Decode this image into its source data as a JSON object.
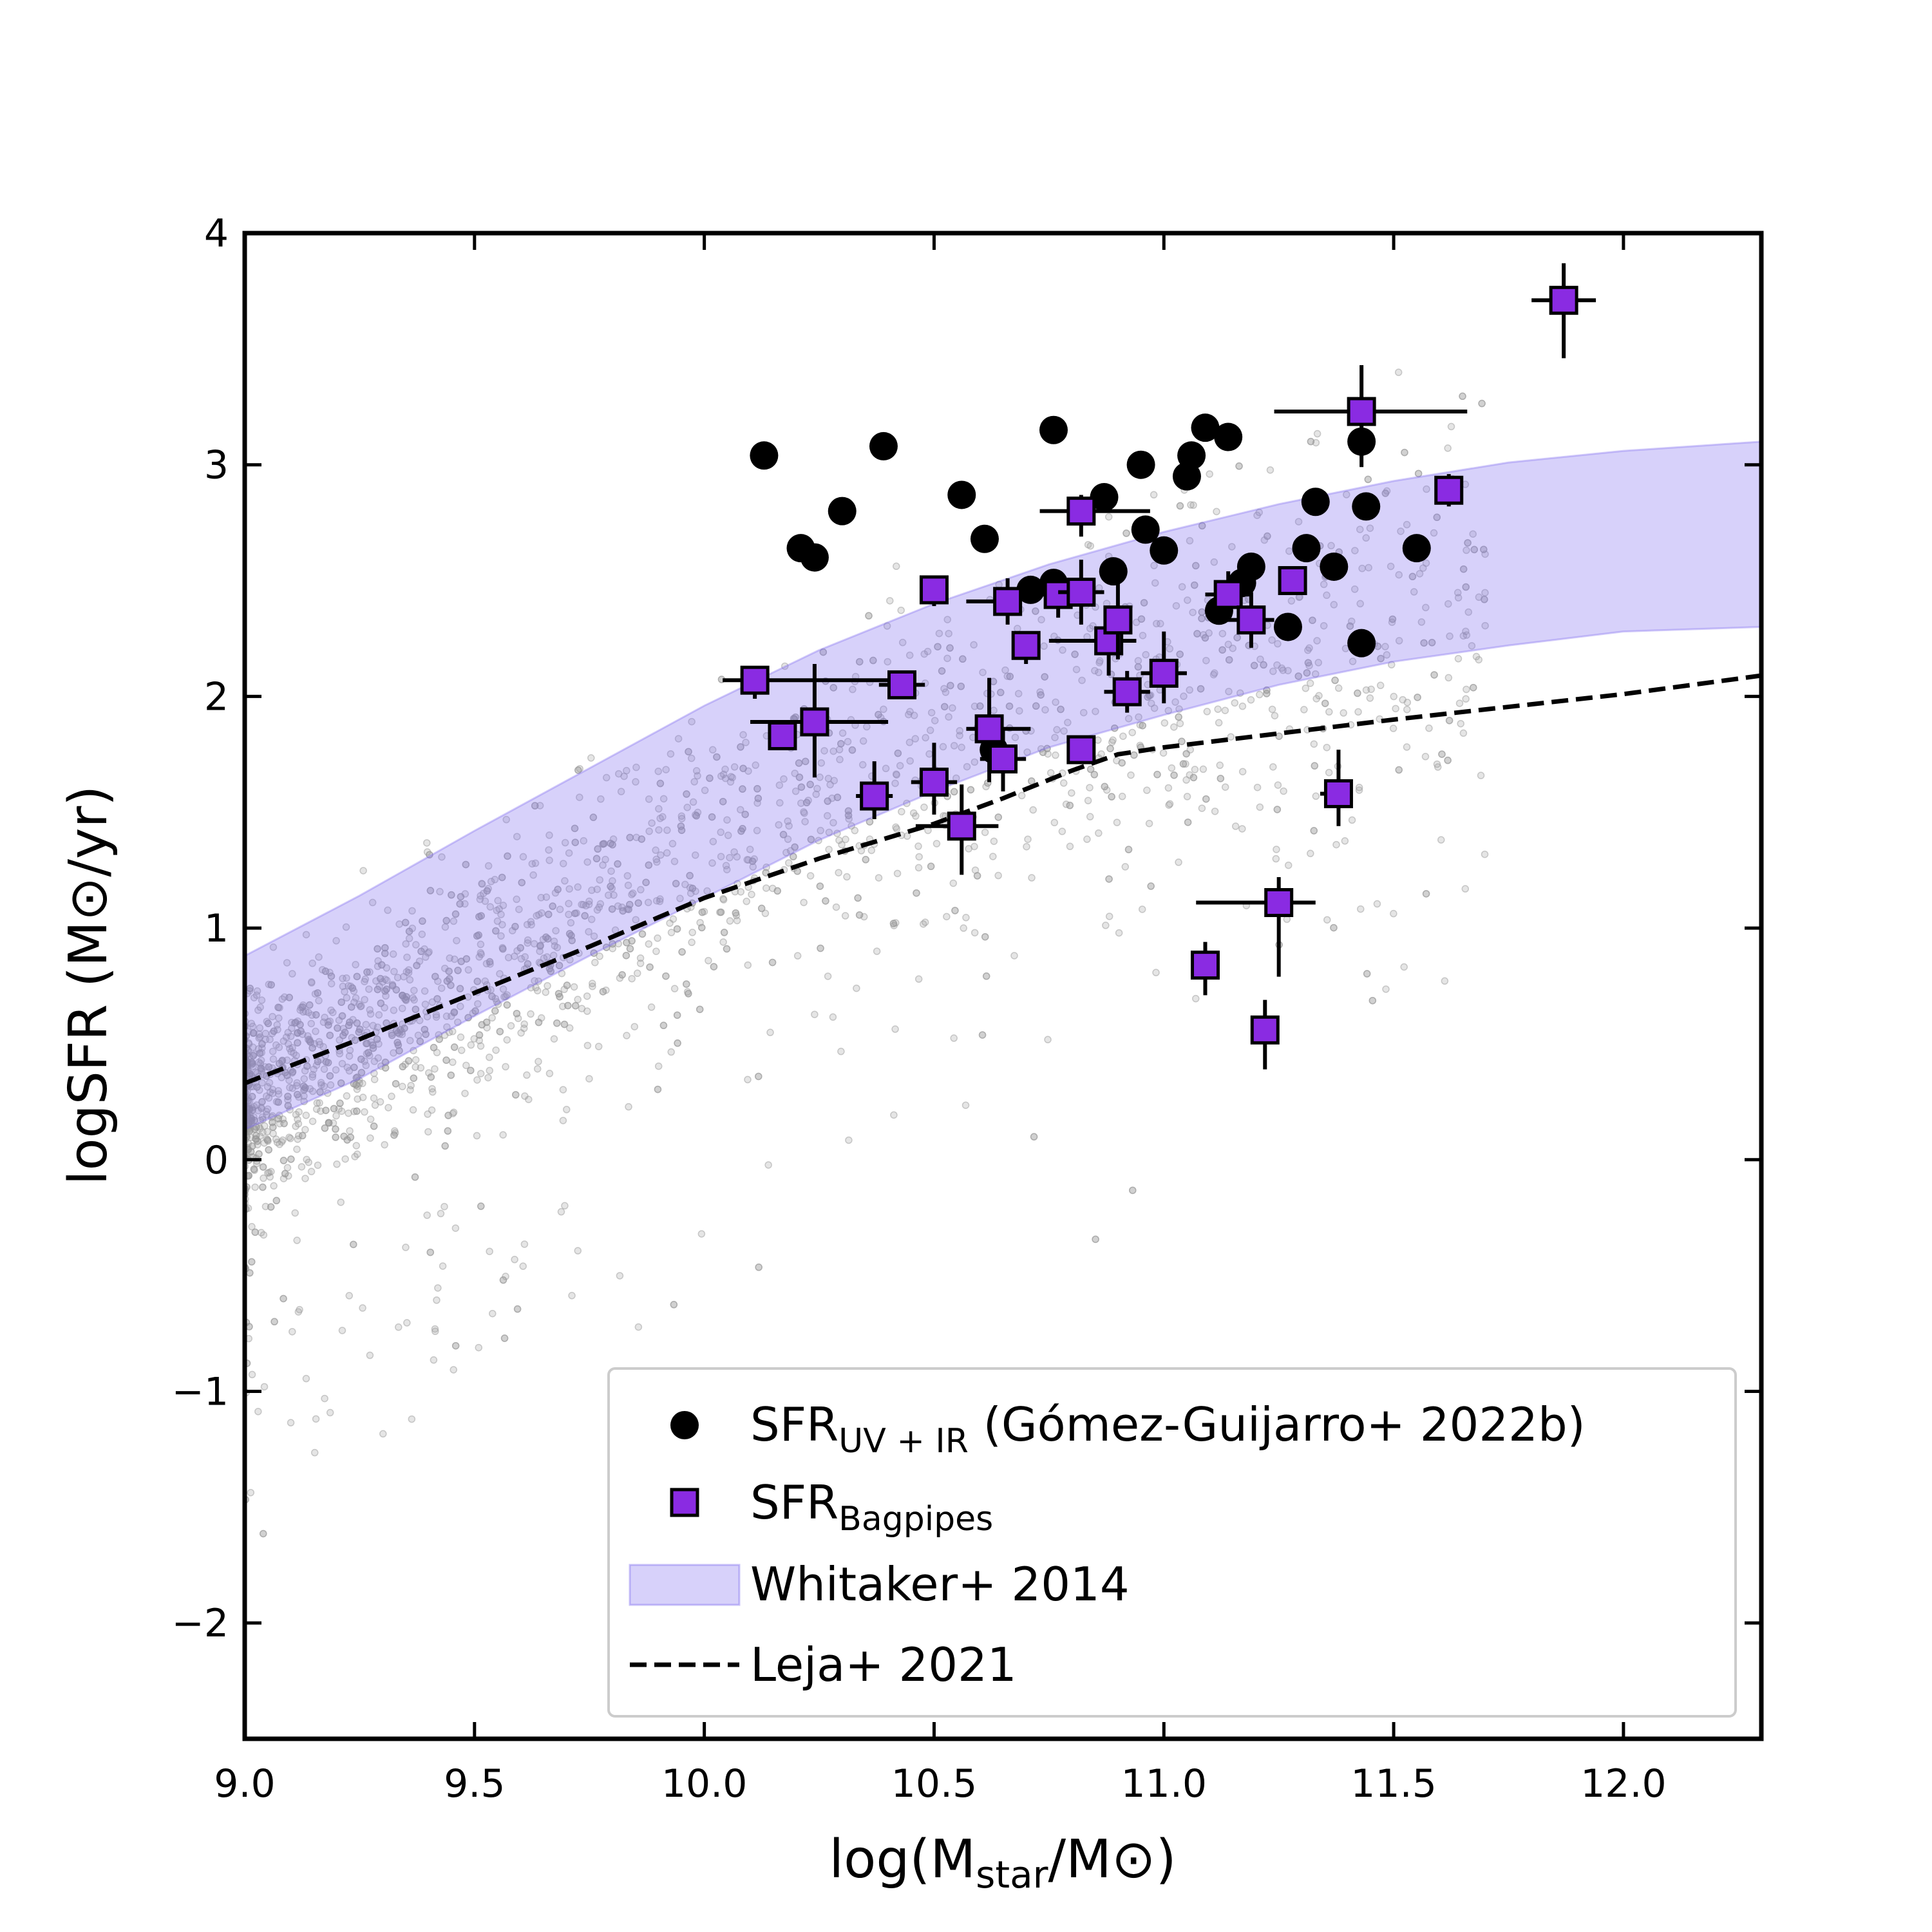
{
  "chart_data": {
    "type": "scatter",
    "title": "",
    "xlabel": {
      "main": "log(M",
      "sub": "star",
      "rest": "/M",
      "symbol": "⊙",
      "close": ")"
    },
    "ylabel": {
      "main": "logSFR (M",
      "symbol": "⊙",
      "rest": "/yr)"
    },
    "xlim": [
      9.0,
      12.3
    ],
    "ylim": [
      -2.5,
      4.0
    ],
    "xticks": [
      9.0,
      9.5,
      10.0,
      10.5,
      11.0,
      11.5,
      12.0
    ],
    "xtick_labels": [
      "9.0",
      "9.5",
      "10.0",
      "10.5",
      "11.0",
      "11.5",
      "12.0"
    ],
    "yticks": [
      -2,
      -1,
      0,
      1,
      2,
      3,
      4
    ],
    "ytick_labels": [
      "−2",
      "−1",
      "0",
      "1",
      "2",
      "3",
      "4"
    ],
    "grid": false,
    "legend_position": "bottom-right",
    "legend": [
      {
        "label": "SFR",
        "sub": "UV + IR",
        "suffix": " (Gómez-Guijarro+ 2022b)",
        "marker": "circle"
      },
      {
        "label": "SFR",
        "sub": "Bagpipes",
        "suffix": "",
        "marker": "square"
      },
      {
        "label": "Whitaker+ 2014",
        "sub": "",
        "suffix": "",
        "marker": "band"
      },
      {
        "label": "Leja+ 2021",
        "sub": "",
        "suffix": "",
        "marker": "dashed"
      }
    ],
    "colors": {
      "uvir": "#000000",
      "bagpipes": "#8a2be2",
      "band": "#7b68ee",
      "background_points": "#999999",
      "leja": "#000000"
    },
    "series": [
      {
        "name": "SFR UV+IR (Gómez-Guijarro+ 2022b)",
        "points": [
          [
            10.13,
            3.04
          ],
          [
            10.39,
            3.08
          ],
          [
            10.3,
            2.8
          ],
          [
            10.21,
            2.64
          ],
          [
            10.24,
            2.6
          ],
          [
            10.56,
            2.87
          ],
          [
            10.61,
            2.68
          ],
          [
            10.76,
            3.15
          ],
          [
            10.87,
            2.86
          ],
          [
            10.95,
            3.0
          ],
          [
            10.96,
            2.72
          ],
          [
            11.0,
            2.63
          ],
          [
            11.05,
            2.95
          ],
          [
            11.06,
            3.04
          ],
          [
            11.09,
            3.16
          ],
          [
            11.14,
            3.12
          ],
          [
            11.12,
            2.37
          ],
          [
            11.17,
            2.49
          ],
          [
            11.19,
            2.56
          ],
          [
            11.27,
            2.3
          ],
          [
            11.31,
            2.64
          ],
          [
            11.33,
            2.84
          ],
          [
            11.37,
            2.56
          ],
          [
            11.43,
            3.1
          ],
          [
            11.44,
            2.82
          ],
          [
            11.43,
            2.23
          ],
          [
            11.55,
            2.64
          ],
          [
            10.71,
            2.46
          ],
          [
            10.76,
            2.49
          ],
          [
            10.89,
            2.54
          ],
          [
            10.63,
            1.77
          ]
        ]
      },
      {
        "name": "SFR Bagpipes",
        "points": [
          {
            "x": 10.11,
            "y": 2.07,
            "xerr": [
              0.07,
              0.33
            ],
            "yerr": [
              0.08,
              0.04
            ]
          },
          {
            "x": 10.17,
            "y": 1.83,
            "xerr": [
              0.03,
              0.03
            ],
            "yerr": [
              0.04,
              0.04
            ]
          },
          {
            "x": 10.24,
            "y": 1.89,
            "xerr": [
              0.14,
              0.16
            ],
            "yerr": [
              0.24,
              0.25
            ]
          },
          {
            "x": 10.37,
            "y": 1.57,
            "xerr": [
              0.04,
              0.04
            ],
            "yerr": [
              0.1,
              0.15
            ]
          },
          {
            "x": 10.43,
            "y": 2.05,
            "xerr": [
              0.05,
              0.05
            ],
            "yerr": [
              0.06,
              0.06
            ]
          },
          {
            "x": 10.5,
            "y": 2.46,
            "xerr": [
              0.03,
              0.03
            ],
            "yerr": [
              0.07,
              0.03
            ]
          },
          {
            "x": 10.5,
            "y": 1.63,
            "xerr": [
              0.05,
              0.05
            ],
            "yerr": [
              0.14,
              0.17
            ]
          },
          {
            "x": 10.56,
            "y": 1.44,
            "xerr": [
              0.1,
              0.08
            ],
            "yerr": [
              0.21,
              0.18
            ]
          },
          {
            "x": 10.62,
            "y": 1.86,
            "xerr": [
              0.05,
              0.09
            ],
            "yerr": [
              0.23,
              0.22
            ]
          },
          {
            "x": 10.65,
            "y": 1.73,
            "xerr": [
              0.05,
              0.05
            ],
            "yerr": [
              0.14,
              0.13
            ]
          },
          {
            "x": 10.66,
            "y": 2.41,
            "xerr": [
              0.09,
              0.03
            ],
            "yerr": [
              0.1,
              0.1
            ]
          },
          {
            "x": 10.7,
            "y": 2.22,
            "xerr": [
              0.03,
              0.03
            ],
            "yerr": [
              0.08,
              0.06
            ]
          },
          {
            "x": 10.77,
            "y": 2.44,
            "xerr": [
              0.05,
              0.05
            ],
            "yerr": [
              0.1,
              0.1
            ]
          },
          {
            "x": 10.82,
            "y": 2.8,
            "xerr": [
              0.09,
              0.15
            ],
            "yerr": [
              0.11,
              0.07
            ]
          },
          {
            "x": 10.82,
            "y": 2.45,
            "xerr": [
              0.05,
              0.05
            ],
            "yerr": [
              0.14,
              0.14
            ]
          },
          {
            "x": 10.82,
            "y": 1.77,
            "xerr": [
              0.03,
              0.03
            ],
            "yerr": [
              0.05,
              0.05
            ]
          },
          {
            "x": 10.88,
            "y": 2.24,
            "xerr": [
              0.13,
              0.06
            ],
            "yerr": [
              0.15,
              0.14
            ]
          },
          {
            "x": 10.9,
            "y": 2.33,
            "xerr": [
              0.03,
              0.03
            ],
            "yerr": [
              0.17,
              0.17
            ]
          },
          {
            "x": 10.92,
            "y": 2.02,
            "xerr": [
              0.05,
              0.05
            ],
            "yerr": [
              0.09,
              0.09
            ]
          },
          {
            "x": 11.0,
            "y": 2.1,
            "xerr": [
              0.05,
              0.05
            ],
            "yerr": [
              0.13,
              0.18
            ]
          },
          {
            "x": 11.09,
            "y": 0.84,
            "xerr": [
              0.03,
              0.03
            ],
            "yerr": [
              0.13,
              0.1
            ]
          },
          {
            "x": 11.14,
            "y": 2.44,
            "xerr": [
              0.05,
              0.05
            ],
            "yerr": [
              0.1,
              0.1
            ]
          },
          {
            "x": 11.19,
            "y": 2.33,
            "xerr": [
              0.06,
              0.05
            ],
            "yerr": [
              0.12,
              0.12
            ]
          },
          {
            "x": 11.22,
            "y": 0.56,
            "xerr": [
              0.03,
              0.03
            ],
            "yerr": [
              0.17,
              0.13
            ]
          },
          {
            "x": 11.25,
            "y": 1.11,
            "xerr": [
              0.18,
              0.08
            ],
            "yerr": [
              0.32,
              0.11
            ]
          },
          {
            "x": 11.28,
            "y": 2.5,
            "xerr": [
              0.03,
              0.03
            ],
            "yerr": [
              0.05,
              0.05
            ]
          },
          {
            "x": 11.38,
            "y": 1.58,
            "xerr": [
              0.04,
              0.03
            ],
            "yerr": [
              0.14,
              0.19
            ]
          },
          {
            "x": 11.43,
            "y": 3.23,
            "xerr": [
              0.19,
              0.23
            ],
            "yerr": [
              0.24,
              0.2
            ]
          },
          {
            "x": 11.62,
            "y": 2.89,
            "xerr": [
              0.03,
              0.03
            ],
            "yerr": [
              0.07,
              0.07
            ]
          },
          {
            "x": 11.87,
            "y": 3.71,
            "xerr": [
              0.07,
              0.07
            ],
            "yerr": [
              0.25,
              0.16
            ]
          }
        ]
      },
      {
        "name": "Whitaker+ 2014",
        "x": [
          9.0,
          9.25,
          9.5,
          9.75,
          10.0,
          10.25,
          10.5,
          10.75,
          11.0,
          11.25,
          11.5,
          11.75,
          12.0,
          12.3
        ],
        "lower": [
          0.13,
          0.35,
          0.62,
          0.88,
          1.13,
          1.38,
          1.59,
          1.78,
          1.92,
          2.05,
          2.15,
          2.22,
          2.28,
          2.3
        ],
        "upper": [
          0.88,
          1.14,
          1.42,
          1.69,
          1.96,
          2.2,
          2.4,
          2.57,
          2.71,
          2.83,
          2.93,
          3.01,
          3.06,
          3.1
        ]
      },
      {
        "name": "Leja+ 2021",
        "x": [
          9.0,
          9.25,
          9.5,
          9.75,
          10.0,
          10.25,
          10.5,
          10.65,
          10.8,
          10.9,
          11.0,
          11.25,
          11.5,
          12.0,
          12.3
        ],
        "y": [
          0.33,
          0.52,
          0.72,
          0.92,
          1.13,
          1.3,
          1.45,
          1.56,
          1.68,
          1.75,
          1.78,
          1.84,
          1.9,
          2.01,
          2.09
        ]
      }
    ]
  }
}
